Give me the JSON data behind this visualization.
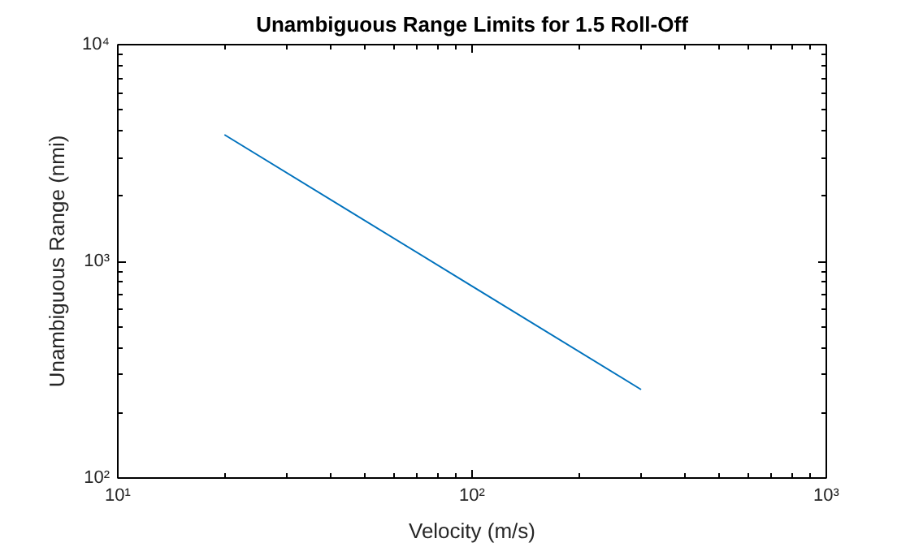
{
  "chart_data": {
    "type": "line",
    "title": "Unambiguous Range Limits for 1.5 Roll-Off",
    "xlabel": "Velocity (m/s)",
    "ylabel": "Unambiguous Range (nmi)",
    "log": "xy",
    "grid": false,
    "marker": "none",
    "line_style": "solid",
    "x": [
      20,
      100,
      300
    ],
    "series": [
      {
        "color": "#0072bd",
        "values": [
          3840,
          768,
          256
        ]
      }
    ],
    "xlim": [
      10,
      1000
    ],
    "xticks": [
      {
        "value": 10,
        "label": "10¹"
      },
      {
        "value": 100,
        "label": "10²"
      },
      {
        "value": 1000,
        "label": "10³"
      }
    ],
    "ylim": [
      100,
      10000
    ],
    "yticks": [
      {
        "value": 100,
        "label": "10²"
      },
      {
        "value": 1000,
        "label": "10³"
      },
      {
        "value": 10000,
        "label": "10⁴"
      }
    ]
  }
}
